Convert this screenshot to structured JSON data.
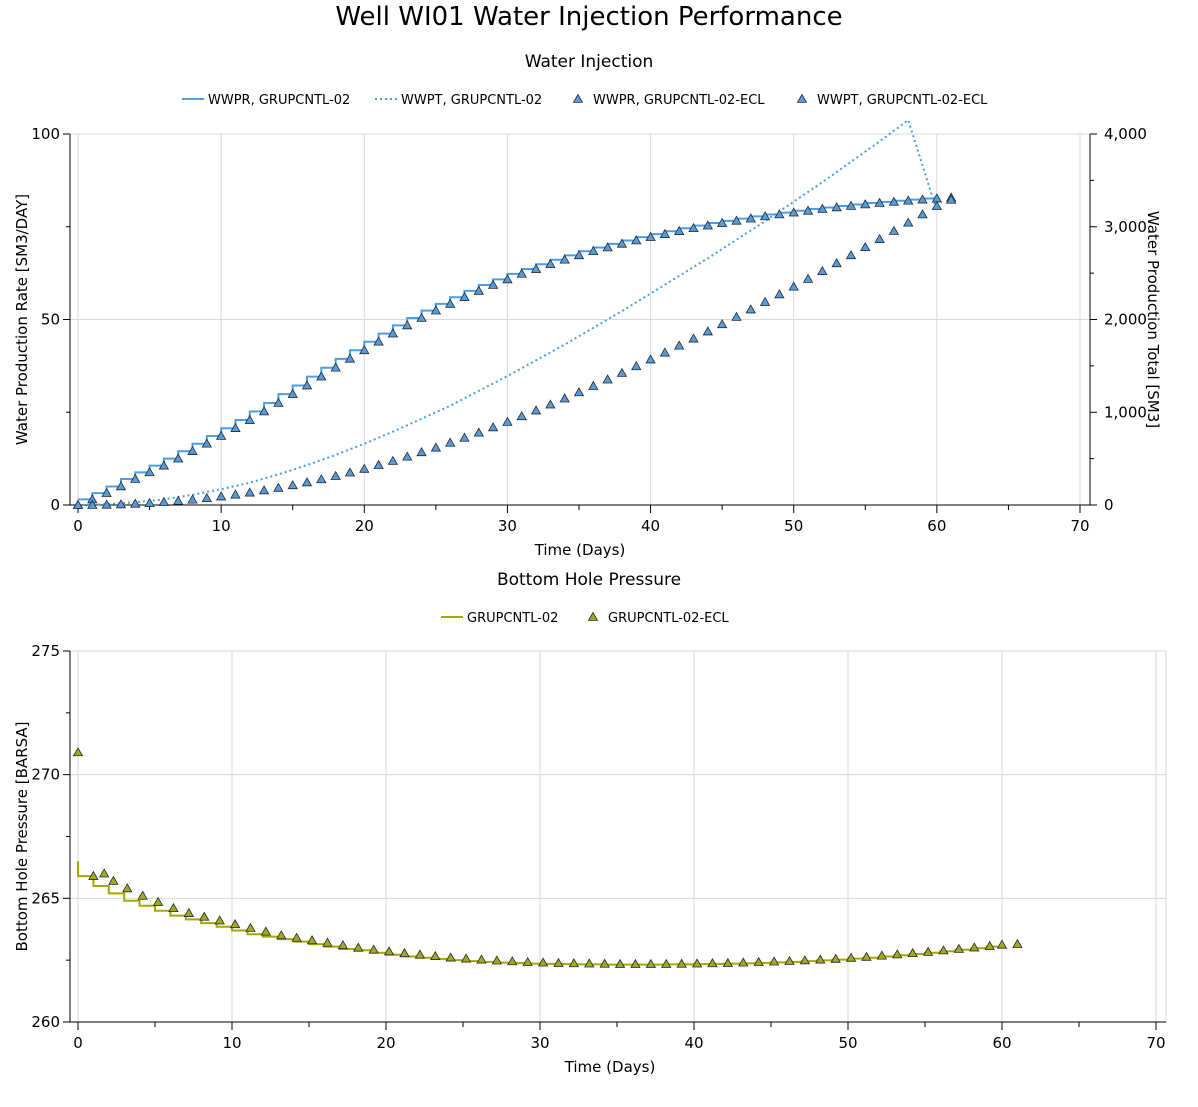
{
  "page": {
    "title": "Well WI01 Water Injection Performance"
  },
  "colors": {
    "blue": "#4a9ee8",
    "olive": "#a6a800",
    "grid": "#d9d9d9",
    "axis": "#000000",
    "marker_blue": "#5b9bd5",
    "marker_olive": "#a4a81a"
  },
  "chart_data": [
    {
      "type": "line",
      "title": "Water Injection",
      "xlabel": "Time (Days)",
      "ylabel": "Water Production Rate [SM3/DAY]",
      "y2label": "Water Production Total [SM3]",
      "xlim": [
        0,
        70
      ],
      "ylim": [
        0,
        100
      ],
      "y2lim": [
        0,
        4000
      ],
      "x_ticks": [
        "0",
        "10",
        "20",
        "30",
        "40",
        "50",
        "60",
        "70"
      ],
      "y_ticks": [
        "0",
        "50",
        "100"
      ],
      "y2_ticks": [
        "0",
        "1,000",
        "2,000",
        "3,000",
        "4,000"
      ],
      "grid": true,
      "legend_position": "top",
      "series": [
        {
          "name": "WWPR, GRUPCNTL-02",
          "style": "step",
          "axis": "left",
          "color": "#4a9ee8",
          "x": [
            0,
            1,
            2,
            3,
            4,
            5,
            6,
            7,
            8,
            9,
            10,
            11,
            12,
            13,
            14,
            15,
            16,
            17,
            18,
            19,
            20,
            21,
            22,
            23,
            24,
            25,
            26,
            27,
            28,
            29,
            30,
            31,
            32,
            33,
            34,
            35,
            36,
            37,
            38,
            39,
            40,
            41,
            42,
            43,
            44,
            45,
            46,
            47,
            48,
            49,
            50,
            51,
            52,
            53,
            54,
            55,
            56,
            57,
            58,
            59,
            60
          ],
          "values": [
            1.5,
            3.2,
            5.0,
            7.0,
            8.8,
            10.6,
            12.5,
            14.5,
            16.5,
            18.6,
            20.7,
            22.9,
            25.2,
            27.5,
            29.9,
            32.2,
            34.6,
            37.0,
            39.4,
            41.7,
            44.0,
            46.2,
            48.4,
            50.4,
            52.4,
            54.2,
            56.0,
            57.7,
            59.3,
            60.8,
            62.3,
            63.6,
            64.9,
            66.1,
            67.3,
            68.4,
            69.4,
            70.4,
            71.3,
            72.2,
            73.0,
            73.8,
            74.6,
            75.3,
            76.0,
            76.6,
            77.2,
            77.8,
            78.3,
            78.8,
            79.3,
            79.8,
            80.2,
            80.6,
            81.0,
            81.4,
            81.7,
            82.0,
            82.3,
            82.6,
            82.8
          ]
        },
        {
          "name": "WWPT, GRUPCNTL-02",
          "style": "dotted",
          "axis": "right",
          "color": "#4a9ee8",
          "x": [
            0,
            2,
            4,
            6,
            8,
            10,
            12,
            14,
            16,
            18,
            20,
            22,
            24,
            26,
            28,
            30,
            32,
            34,
            36,
            38,
            40,
            42,
            44,
            46,
            48,
            50,
            52,
            54,
            56,
            58,
            60
          ],
          "values": [
            0,
            8,
            30,
            60,
            110,
            170,
            240,
            330,
            430,
            540,
            660,
            790,
            930,
            1070,
            1230,
            1390,
            1560,
            1730,
            1910,
            2090,
            2280,
            2470,
            2660,
            2860,
            3060,
            3270,
            3480,
            3700,
            3920,
            4150,
            3170
          ]
        },
        {
          "name": "WWPR, GRUPCNTL-02-ECL",
          "style": "marker",
          "axis": "left",
          "color": "#5b9bd5",
          "x": [
            0,
            1,
            2,
            3,
            4,
            5,
            6,
            7,
            8,
            9,
            10,
            11,
            12,
            13,
            14,
            15,
            16,
            17,
            18,
            19,
            20,
            21,
            22,
            23,
            24,
            25,
            26,
            27,
            28,
            29,
            30,
            31,
            32,
            33,
            34,
            35,
            36,
            37,
            38,
            39,
            40,
            41,
            42,
            43,
            44,
            45,
            46,
            47,
            48,
            49,
            50,
            51,
            52,
            53,
            54,
            55,
            56,
            57,
            58,
            59,
            60,
            61
          ],
          "values": [
            0.0,
            1.5,
            3.2,
            5.0,
            7.0,
            8.8,
            10.6,
            12.5,
            14.5,
            16.5,
            18.6,
            20.7,
            22.9,
            25.2,
            27.5,
            29.9,
            32.2,
            34.6,
            37.0,
            39.4,
            41.7,
            44.0,
            46.2,
            48.4,
            50.4,
            52.4,
            54.2,
            56.0,
            57.7,
            59.3,
            60.8,
            62.3,
            63.6,
            64.9,
            66.1,
            67.3,
            68.4,
            69.4,
            70.4,
            71.3,
            72.2,
            73.0,
            73.8,
            74.6,
            75.3,
            76.0,
            76.6,
            77.2,
            77.8,
            78.3,
            78.8,
            79.3,
            79.8,
            80.2,
            80.6,
            81.0,
            81.4,
            81.7,
            82.0,
            82.3,
            82.6,
            82.8
          ]
        },
        {
          "name": "WWPT, GRUPCNTL-02-ECL",
          "style": "marker",
          "axis": "right",
          "color": "#5b9bd5",
          "x": [
            0,
            1,
            2,
            3,
            4,
            5,
            6,
            7,
            8,
            9,
            10,
            11,
            12,
            13,
            14,
            15,
            16,
            17,
            18,
            19,
            20,
            21,
            22,
            23,
            24,
            25,
            26,
            27,
            28,
            29,
            30,
            31,
            32,
            33,
            34,
            35,
            36,
            37,
            38,
            39,
            40,
            41,
            42,
            43,
            44,
            45,
            46,
            47,
            48,
            49,
            50,
            51,
            52,
            53,
            54,
            55,
            56,
            57,
            58,
            59,
            60,
            61
          ],
          "values": [
            0,
            0,
            2,
            6,
            13,
            21,
            31,
            43,
            57,
            73,
            91,
            111,
            133,
            157,
            184,
            212,
            243,
            276,
            311,
            349,
            389,
            430,
            474,
            520,
            568,
            618,
            670,
            724,
            779,
            836,
            895,
            956,
            1018,
            1082,
            1147,
            1214,
            1282,
            1352,
            1423,
            1495,
            1568,
            1642,
            1717,
            1793,
            1870,
            1948,
            2027,
            2107,
            2188,
            2270,
            2353,
            2437,
            2521,
            2606,
            2692,
            2779,
            2866,
            2954,
            3043,
            3132,
            3222,
            3290
          ]
        }
      ]
    },
    {
      "type": "line",
      "title": "Bottom Hole Pressure",
      "xlabel": "Time (Days)",
      "ylabel": "Bottom Hole Pressure [BARSA]",
      "xlim": [
        0,
        70
      ],
      "ylim": [
        260,
        275
      ],
      "x_ticks": [
        "0",
        "10",
        "20",
        "30",
        "40",
        "50",
        "60",
        "70"
      ],
      "y_ticks": [
        "260",
        "265",
        "270",
        "275"
      ],
      "grid": true,
      "legend_position": "top",
      "series": [
        {
          "name": "GRUPCNTL-02",
          "style": "step",
          "color": "#a6a800",
          "x": [
            0,
            1,
            2,
            3,
            4,
            5,
            6,
            7,
            8,
            9,
            10,
            11,
            12,
            13,
            14,
            15,
            16,
            17,
            18,
            19,
            20,
            21,
            22,
            23,
            24,
            25,
            26,
            27,
            28,
            29,
            30,
            31,
            32,
            33,
            34,
            35,
            36,
            37,
            38,
            39,
            40,
            41,
            42,
            43,
            44,
            45,
            46,
            47,
            48,
            49,
            50,
            51,
            52,
            53,
            54,
            55,
            56,
            57,
            58,
            59,
            60
          ],
          "values": [
            265.9,
            265.5,
            265.2,
            264.9,
            264.7,
            264.5,
            264.3,
            264.15,
            264.0,
            263.85,
            263.7,
            263.55,
            263.45,
            263.35,
            263.25,
            263.15,
            263.05,
            262.95,
            262.9,
            262.8,
            262.72,
            262.65,
            262.6,
            262.55,
            262.5,
            262.46,
            262.43,
            262.4,
            262.38,
            262.36,
            262.35,
            262.34,
            262.33,
            262.33,
            262.32,
            262.32,
            262.32,
            262.32,
            262.33,
            262.33,
            262.34,
            262.35,
            262.36,
            262.37,
            262.39,
            262.41,
            262.43,
            262.46,
            262.49,
            262.52,
            262.56,
            262.6,
            262.65,
            262.7,
            262.75,
            262.8,
            262.86,
            262.92,
            262.98,
            263.05,
            263.1
          ]
        },
        {
          "name": "GRUPCNTL-02-ECL",
          "style": "marker",
          "color": "#a4a81a",
          "x": [
            0,
            1,
            1.7,
            2.3,
            3.2,
            4.2,
            5.2,
            6.2,
            7.2,
            8.2,
            9.2,
            10.2,
            11.2,
            12.2,
            13.2,
            14.2,
            15.2,
            16.2,
            17.2,
            18.2,
            19.2,
            20.2,
            21.2,
            22.2,
            23.2,
            24.2,
            25.2,
            26.2,
            27.2,
            28.2,
            29.2,
            30.2,
            31.2,
            32.2,
            33.2,
            34.2,
            35.2,
            36.2,
            37.2,
            38.2,
            39.2,
            40.2,
            41.2,
            42.2,
            43.2,
            44.2,
            45.2,
            46.2,
            47.2,
            48.2,
            49.2,
            50.2,
            51.2,
            52.2,
            53.2,
            54.2,
            55.2,
            56.2,
            57.2,
            58.2,
            59.2,
            60,
            61
          ],
          "values": [
            270.9,
            265.9,
            266.0,
            265.7,
            265.4,
            265.1,
            264.85,
            264.6,
            264.4,
            264.25,
            264.1,
            263.95,
            263.8,
            263.65,
            263.5,
            263.4,
            263.3,
            263.2,
            263.1,
            263.0,
            262.92,
            262.85,
            262.78,
            262.72,
            262.66,
            262.6,
            262.56,
            262.52,
            262.48,
            262.45,
            262.42,
            262.4,
            262.38,
            262.37,
            262.36,
            262.35,
            262.34,
            262.34,
            262.34,
            262.34,
            262.35,
            262.36,
            262.37,
            262.38,
            262.4,
            262.42,
            262.44,
            262.46,
            262.49,
            262.52,
            262.55,
            262.59,
            262.63,
            262.68,
            262.73,
            262.78,
            262.83,
            262.89,
            262.95,
            263.01,
            263.07,
            263.12,
            263.15
          ]
        }
      ]
    }
  ]
}
